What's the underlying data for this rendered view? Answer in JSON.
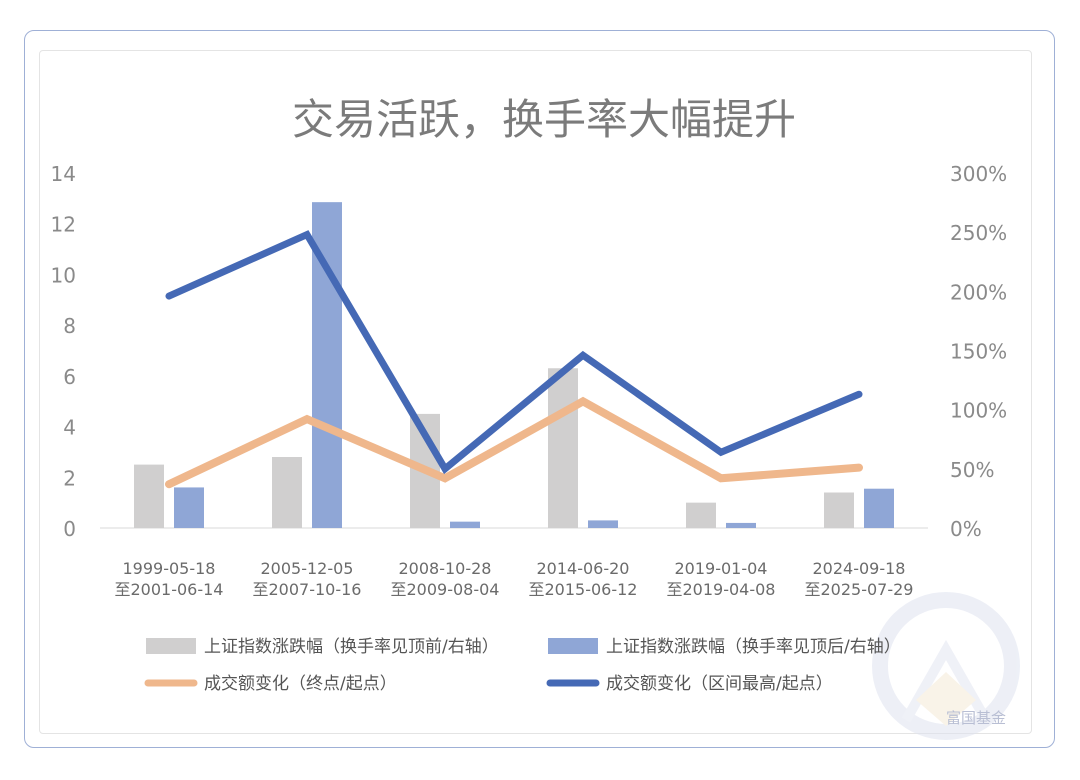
{
  "chart_data": {
    "type": "bar+line",
    "title": "交易活跃，换手率大幅提升",
    "categories": [
      [
        "1999-05-18",
        "至2001-06-14"
      ],
      [
        "2005-12-05",
        "至2007-10-16"
      ],
      [
        "2008-10-28",
        "至2009-08-04"
      ],
      [
        "2014-06-20",
        "至2015-06-12"
      ],
      [
        "2019-01-04",
        "至2019-04-08"
      ],
      [
        "2024-09-18",
        "至2025-07-29"
      ]
    ],
    "left_axis": {
      "min": 0,
      "max": 14,
      "ticks": [
        "0",
        "2",
        "4",
        "6",
        "8",
        "10",
        "12",
        "14"
      ]
    },
    "right_axis": {
      "min": 0,
      "max": 3.0,
      "ticks": [
        "0%",
        "50%",
        "100%",
        "150%",
        "200%",
        "250%",
        "300%"
      ]
    },
    "bar_series": [
      {
        "name": "上证指数涨跌幅（换手率见顶前/右轴）",
        "color": "#d0cfcf",
        "values": [
          2.5,
          2.8,
          4.5,
          6.3,
          1.0,
          1.4
        ]
      },
      {
        "name": "上证指数涨跌幅（换手率见顶后/右轴）",
        "color": "#8fa6d6",
        "values": [
          1.6,
          12.85,
          0.25,
          0.3,
          0.2,
          1.55
        ]
      }
    ],
    "line_series": [
      {
        "name": "成交额变化（终点/起点）",
        "color": "#efb78c",
        "values": [
          0.37,
          0.92,
          0.42,
          1.07,
          0.42,
          0.51
        ]
      },
      {
        "name": "成交额变化（区间最高/起点）",
        "color": "#4569b5",
        "values": [
          1.96,
          2.48,
          0.5,
          1.46,
          0.64,
          1.13
        ]
      }
    ],
    "legend_position": "bottom",
    "grid": false
  },
  "watermark": {
    "text": "富国基金"
  }
}
